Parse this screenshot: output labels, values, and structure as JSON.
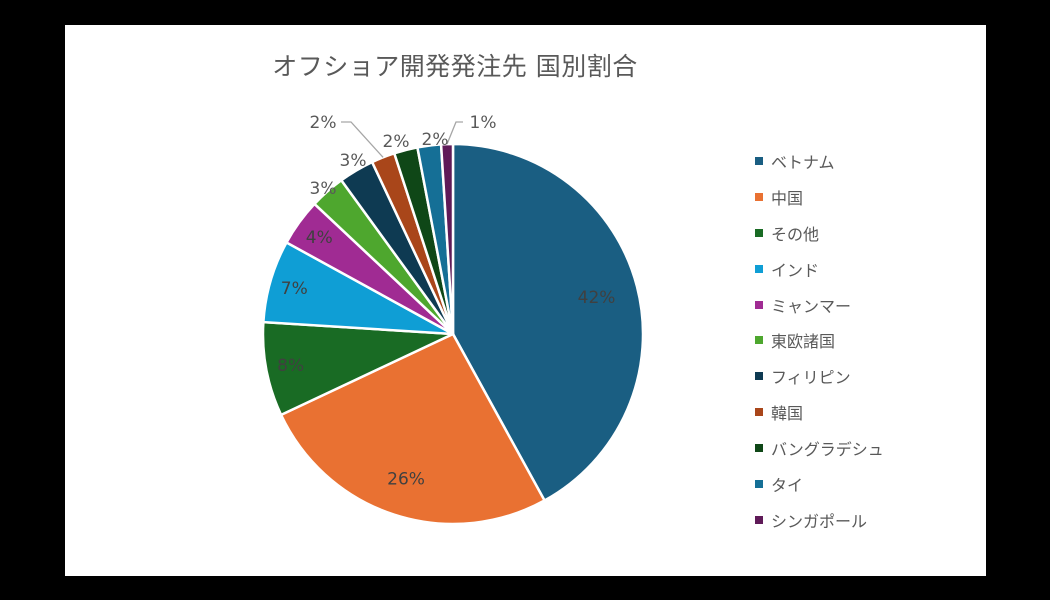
{
  "chart_data": {
    "type": "pie",
    "title": "オフショア開発発注先 国別割合",
    "start_angle_deg": 0,
    "direction": "clockwise",
    "categories": [
      "ベトナム",
      "中国",
      "その他",
      "インド",
      "ミャンマー",
      "東欧諸国",
      "フィリピン",
      "韓国",
      "バングラデシュ",
      "タイ",
      "シンガポール"
    ],
    "values": [
      42,
      26,
      8,
      7,
      4,
      3,
      3,
      2,
      2,
      2,
      1
    ],
    "labels": [
      "42%",
      "26%",
      "8%",
      "7%",
      "4%",
      "3%",
      "3%",
      "2%",
      "2%",
      "2%",
      "1%"
    ],
    "colors": [
      "#1a5e82",
      "#e97132",
      "#196b24",
      "#0f9ed5",
      "#a02b93",
      "#4ea72e",
      "#0e3a52",
      "#a9461a",
      "#0f4717",
      "#156f96",
      "#5f1a58"
    ],
    "legend_position": "right",
    "data_labels": true,
    "units": "%"
  },
  "legend": {
    "items": [
      {
        "label": "ベトナム",
        "color": "#1a5e82"
      },
      {
        "label": "中国",
        "color": "#e97132"
      },
      {
        "label": "その他",
        "color": "#196b24"
      },
      {
        "label": "インド",
        "color": "#0f9ed5"
      },
      {
        "label": "ミャンマー",
        "color": "#a02b93"
      },
      {
        "label": "東欧諸国",
        "color": "#4ea72e"
      },
      {
        "label": "フィリピン",
        "color": "#0e3a52"
      },
      {
        "label": "韓国",
        "color": "#a9461a"
      },
      {
        "label": "バングラデシュ",
        "color": "#0f4717"
      },
      {
        "label": "タイ",
        "color": "#156f96"
      },
      {
        "label": "シンガポール",
        "color": "#5f1a58"
      }
    ]
  }
}
